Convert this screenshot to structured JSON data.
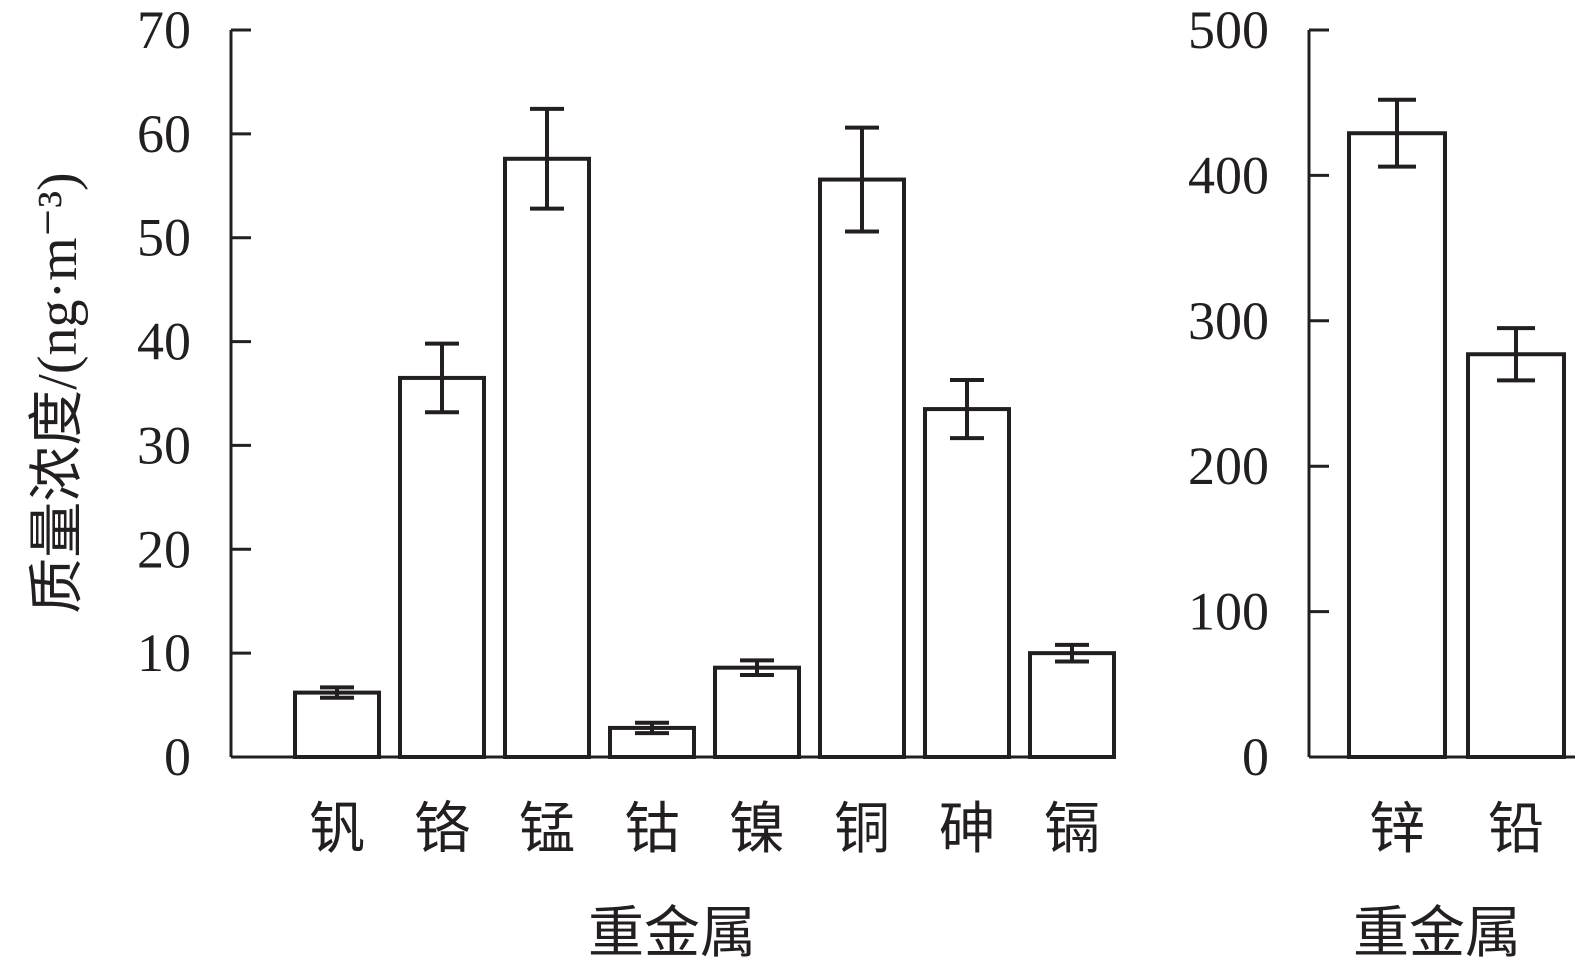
{
  "chart_data": [
    {
      "type": "bar",
      "ylabel": "质量浓度/(ng·m⁻³)",
      "xlabel": "重金属",
      "ylim": [
        0,
        70
      ],
      "yticks": [
        "0",
        "10",
        "20",
        "30",
        "40",
        "50",
        "60",
        "70"
      ],
      "categories": [
        "钒",
        "铬",
        "锰",
        "钴",
        "镍",
        "铜",
        "砷",
        "镉"
      ],
      "values": [
        6.2,
        36.5,
        57.6,
        2.8,
        8.6,
        55.6,
        33.5,
        10.0
      ],
      "errors": [
        0.5,
        3.3,
        4.8,
        0.5,
        0.7,
        5.0,
        2.8,
        0.8
      ],
      "grid": false,
      "bar_fill": "#ffffff",
      "stroke_color": "#231f20"
    },
    {
      "type": "bar",
      "xlabel": "重金属",
      "ylim": [
        0,
        500
      ],
      "yticks": [
        "0",
        "100",
        "200",
        "300",
        "400",
        "500"
      ],
      "categories": [
        "锌",
        "铅"
      ],
      "values": [
        429,
        277
      ],
      "errors": [
        23,
        18
      ],
      "grid": false,
      "bar_fill": "#ffffff",
      "stroke_color": "#231f20"
    }
  ]
}
